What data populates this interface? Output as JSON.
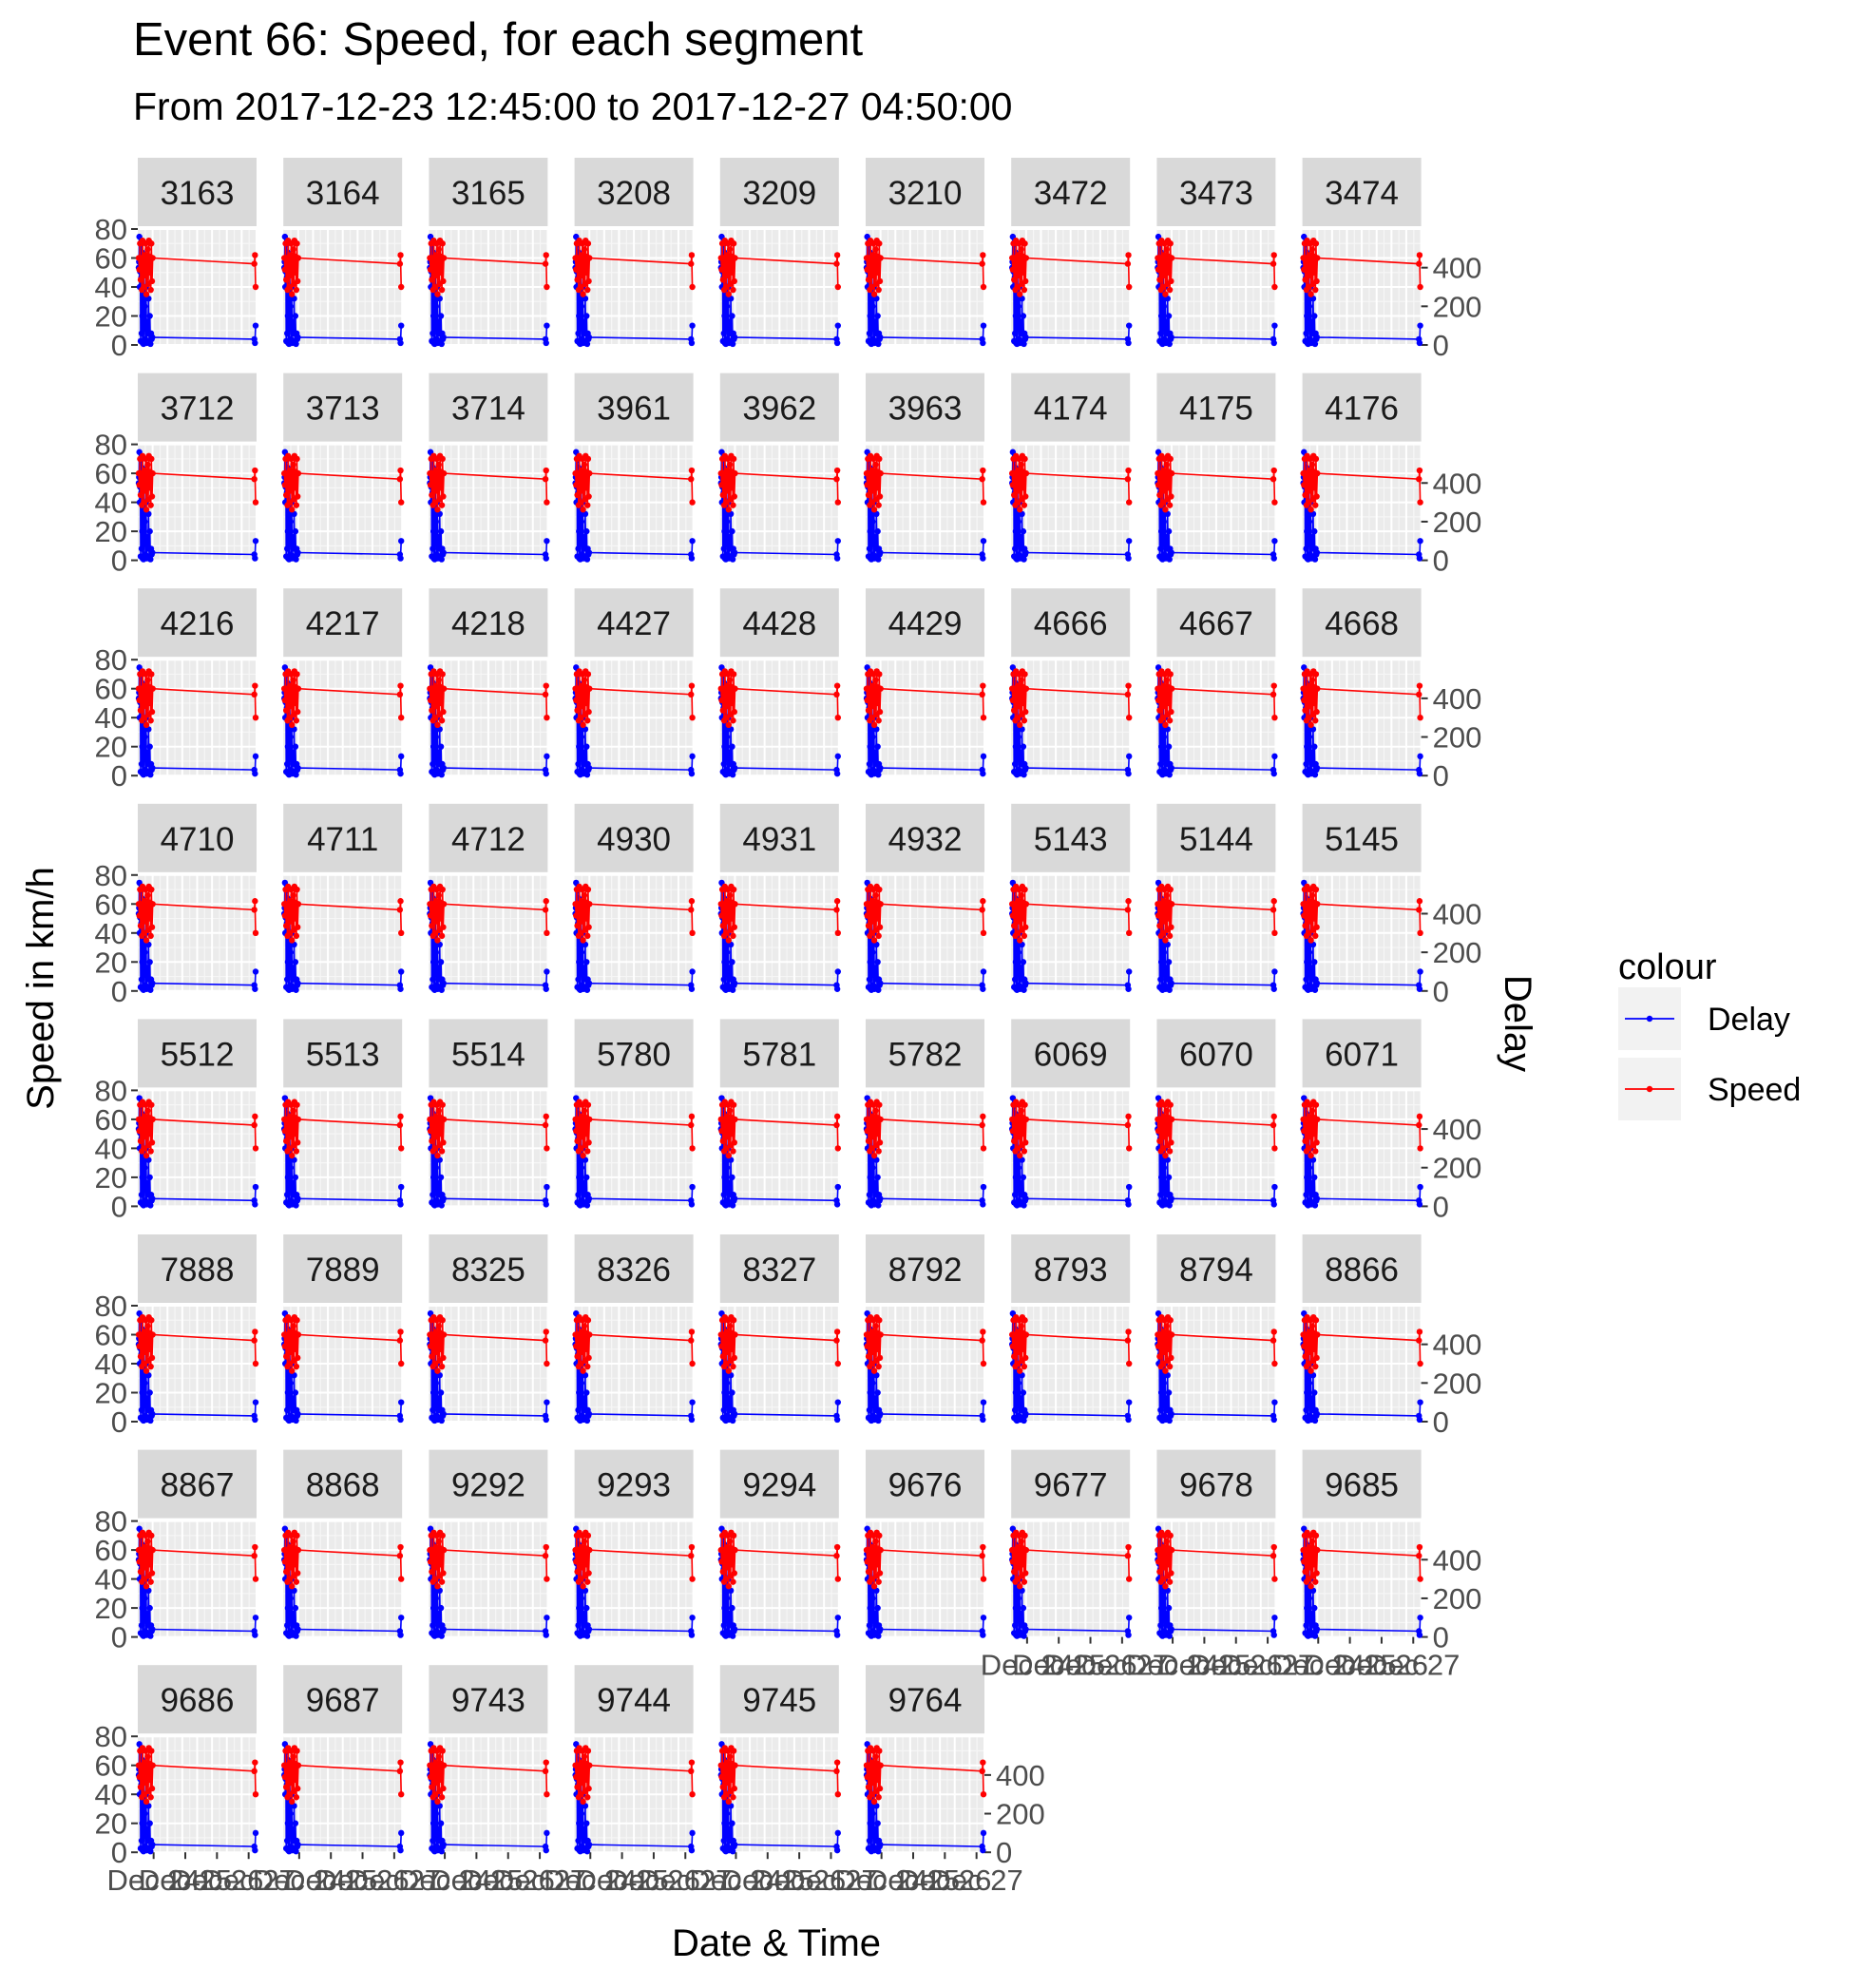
{
  "chart_data": {
    "type": "line",
    "title": "Event 66: Speed, for each segment",
    "subtitle": "From 2017-12-23 12:45:00 to 2017-12-27 04:50:00",
    "xlabel": "Date & Time",
    "ylabel": "Speed in km/h",
    "y2label": "Delay",
    "legend_title": "colour",
    "legend_position": "right",
    "colors": {
      "Delay": "#0000ff",
      "Speed": "#ff0000"
    },
    "ylim": [
      0,
      80
    ],
    "y_ticks": [
      "0",
      "20",
      "40",
      "60",
      "80"
    ],
    "y2lim": [
      0,
      600
    ],
    "y2_ticks": [
      "0",
      "200",
      "400"
    ],
    "x_ticks": [
      "Dec 24",
      "Dec 25",
      "Dec 26",
      "Dec 27"
    ],
    "xlim": [
      23.5,
      27.25
    ],
    "grid": true,
    "segments": [
      "3163",
      "3164",
      "3165",
      "3208",
      "3209",
      "3210",
      "3472",
      "3473",
      "3474",
      "3712",
      "3713",
      "3714",
      "3961",
      "3962",
      "3963",
      "4174",
      "4175",
      "4176",
      "4216",
      "4217",
      "4218",
      "4427",
      "4428",
      "4429",
      "4666",
      "4667",
      "4668",
      "4710",
      "4711",
      "4712",
      "4930",
      "4931",
      "4932",
      "5143",
      "5144",
      "5145",
      "5512",
      "5513",
      "5514",
      "5780",
      "5781",
      "5782",
      "6069",
      "6070",
      "6071",
      "7888",
      "7889",
      "8325",
      "8326",
      "8327",
      "8792",
      "8793",
      "8794",
      "8866",
      "8867",
      "8868",
      "9292",
      "9293",
      "9294",
      "9676",
      "9677",
      "9678",
      "9685",
      "9686",
      "9687",
      "9743",
      "9744",
      "9745",
      "9764"
    ],
    "series": [
      {
        "name": "Speed",
        "axis": "primary",
        "x": [
          23.53,
          23.55,
          23.57,
          23.59,
          23.61,
          23.63,
          23.65,
          23.67,
          23.69,
          23.71,
          23.73,
          23.75,
          23.77,
          23.79,
          23.81,
          23.83,
          23.85,
          23.87,
          23.89,
          23.91,
          23.93,
          23.95,
          23.97,
          27.18,
          27.2,
          27.22
        ],
        "values": [
          60,
          52,
          70,
          45,
          60,
          38,
          72,
          55,
          40,
          62,
          48,
          70,
          35,
          58,
          66,
          42,
          72,
          50,
          61,
          38,
          70,
          44,
          60,
          56,
          62,
          40
        ]
      },
      {
        "name": "Delay",
        "axis": "secondary",
        "x": [
          23.53,
          23.54,
          23.55,
          23.56,
          23.57,
          23.58,
          23.59,
          23.6,
          23.61,
          23.62,
          23.63,
          23.64,
          23.65,
          23.66,
          23.67,
          23.68,
          23.69,
          23.7,
          23.72,
          23.74,
          23.76,
          23.78,
          23.8,
          23.82,
          23.84,
          23.86,
          23.88,
          23.9,
          23.92,
          23.94,
          23.96,
          27.18,
          27.2,
          27.22
        ],
        "values": [
          400,
          430,
          560,
          300,
          380,
          450,
          20,
          520,
          350,
          60,
          480,
          150,
          10,
          420,
          280,
          5,
          90,
          380,
          200,
          30,
          300,
          10,
          120,
          60,
          240,
          20,
          150,
          5,
          60,
          30,
          40,
          30,
          10,
          100
        ]
      }
    ]
  }
}
